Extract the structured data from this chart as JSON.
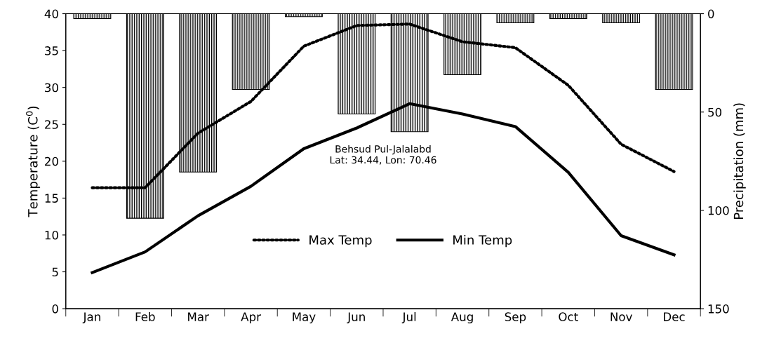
{
  "chart_data": {
    "type": "line",
    "categories": [
      "Jan",
      "Feb",
      "Mar",
      "Apr",
      "May",
      "Jun",
      "Jul",
      "Aug",
      "Sep",
      "Oct",
      "Nov",
      "Dec"
    ],
    "ylabel": "Temperature (C$^{0}$)",
    "y2label": "Precipitation (mm)",
    "ylim": [
      0,
      40
    ],
    "yticks": [
      0,
      5,
      10,
      15,
      20,
      25,
      30,
      35,
      40
    ],
    "y2lim": [
      150,
      0
    ],
    "y2ticks": [
      0,
      50,
      100,
      150
    ],
    "annotations": [
      "Behsud Pul-Jalalabd\nLat: 34.44, Lon: 70.46"
    ],
    "legend": "bottom",
    "grid": false,
    "series": [
      {
        "type": "bar",
        "axis": "y2",
        "color": "#000000",
        "values": [
          2.5,
          104,
          80.5,
          38.5,
          1.5,
          51,
          60,
          31,
          4.6,
          2.5,
          4.6,
          38.5
        ]
      },
      {
        "name": "Max Temp",
        "line_style": "dotted",
        "color": "#000000",
        "values": [
          16.4,
          16.4,
          23.8,
          28.1,
          35.6,
          38.4,
          38.6,
          36.2,
          35.4,
          30.3,
          22.3,
          18.6
        ]
      },
      {
        "name": "Min Temp",
        "line_style": "solid",
        "color": "#000000",
        "values": [
          4.9,
          7.7,
          12.6,
          16.6,
          21.7,
          24.5,
          27.8,
          26.4,
          24.7,
          18.5,
          9.9,
          7.3
        ]
      }
    ]
  }
}
